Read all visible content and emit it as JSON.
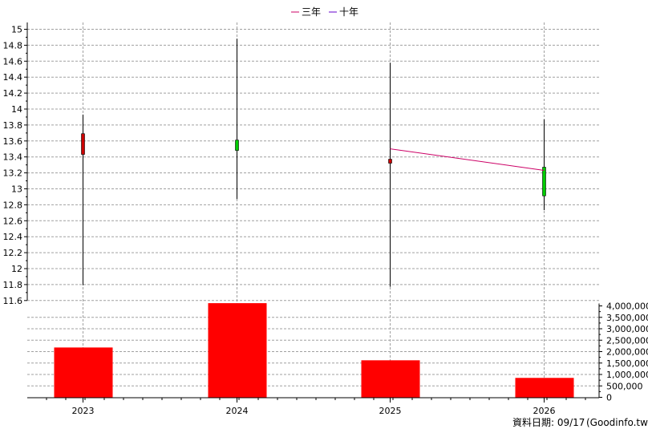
{
  "chart_data": {
    "type": "candlestick+bar",
    "legend": [
      {
        "label": "三年",
        "color": "#cc0066"
      },
      {
        "label": "十年",
        "color": "#6600cc"
      }
    ],
    "categories": [
      "2023",
      "2024",
      "2025",
      "2026"
    ],
    "price_axis": {
      "ylim": [
        11.6,
        15.1
      ],
      "ticks": [
        "15",
        "14.8",
        "14.6",
        "14.4",
        "14.2",
        "14",
        "13.8",
        "13.6",
        "13.4",
        "13.2",
        "13",
        "12.8",
        "12.6",
        "12.4",
        "12.2",
        "12",
        "11.8",
        "11.6"
      ]
    },
    "candles": [
      {
        "year": "2023",
        "open": 13.43,
        "high": 13.93,
        "low": 11.79,
        "close": 13.69,
        "color": "#cc0000"
      },
      {
        "year": "2024",
        "open": 13.61,
        "high": 14.88,
        "low": 12.87,
        "close": 13.48,
        "color": "#00cc00"
      },
      {
        "year": "2025",
        "open": 13.32,
        "high": 14.58,
        "low": 11.77,
        "close": 13.37,
        "color": "#cc0000"
      },
      {
        "year": "2026",
        "open": 13.27,
        "high": 13.87,
        "low": 12.73,
        "close": 12.91,
        "color": "#00cc00"
      }
    ],
    "ma_three_year": [
      {
        "year": "2025",
        "value": 13.5
      },
      {
        "year": "2026",
        "value": 13.23
      }
    ],
    "volume_axis": {
      "ylim": [
        0,
        4000000
      ],
      "ticks": [
        "4,000,000",
        "3,500,000",
        "3,000,000",
        "2,500,000",
        "2,000,000",
        "1,500,000",
        "1,000,000",
        "500,000",
        "0"
      ]
    },
    "volumes": [
      {
        "year": "2023",
        "value": 2180000
      },
      {
        "year": "2024",
        "value": 4120000
      },
      {
        "year": "2025",
        "value": 1620000
      },
      {
        "year": "2026",
        "value": 850000
      }
    ],
    "colors": {
      "volume_bar": "#ff0000",
      "grid": "#a0a0a0",
      "axis": "#000000"
    },
    "grid": true,
    "legend_position": "top-center"
  },
  "footer": {
    "date_label": "資料日期: 09/17",
    "source": "(Goodinfo.tw)"
  }
}
